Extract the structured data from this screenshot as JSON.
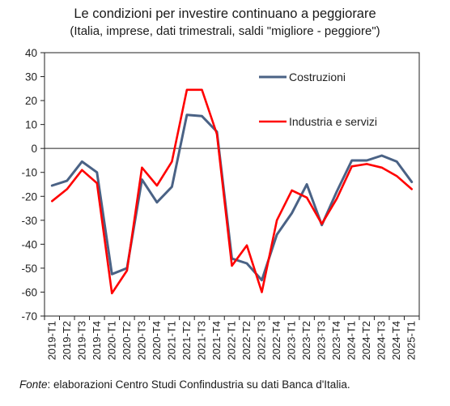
{
  "title": "Le condizioni per investire continuano a peggiorare",
  "subtitle": "(Italia, imprese, dati trimestrali, saldi \"migliore - peggiore\")",
  "source_label": "Fonte",
  "source_text": ": elaborazioni Centro Studi Confindustria su dati Banca d'Italia.",
  "chart_data": {
    "type": "line",
    "x": [
      "2019-T1",
      "2019-T2",
      "2019-T3",
      "2019-T4",
      "2020-T1",
      "2020-T2",
      "2020-T3",
      "2020-T4",
      "2021-T1",
      "2021-T2",
      "2021-T3",
      "2021-T4",
      "2022-T1",
      "2022-T2",
      "2022-T3",
      "2022-T4",
      "2023-T1",
      "2023-T2",
      "2023-T3",
      "2023-T4",
      "2024-T1",
      "2024-T2",
      "2024-T3",
      "2024-T4",
      "2025-T1"
    ],
    "ylim": [
      -70,
      40
    ],
    "yticks": [
      40,
      30,
      20,
      10,
      0,
      -10,
      -20,
      -30,
      -40,
      -50,
      -60,
      -70
    ],
    "grid": false,
    "legend_position": "top-right",
    "series": [
      {
        "name": "Costruzioni",
        "color": "#4a6285",
        "values": [
          -15.5,
          -13.5,
          -5.5,
          -10,
          -52.5,
          -50,
          -13,
          -22.5,
          -16,
          14,
          13.5,
          7,
          -46,
          -48,
          -55,
          -36,
          -27,
          -15,
          -32,
          -18,
          -5,
          -5,
          -3,
          -5.5,
          -14
        ]
      },
      {
        "name": "Industria e servizi",
        "color": "#ff0000",
        "values": [
          -22,
          -17,
          -9,
          -14.5,
          -60.5,
          -51,
          -8,
          -15.5,
          -5.5,
          24.5,
          24.5,
          6,
          -49,
          -40.5,
          -60,
          -30,
          -17.5,
          -20.5,
          -31.5,
          -21,
          -7.5,
          -6.5,
          -8,
          -11.5,
          -17
        ]
      }
    ]
  }
}
